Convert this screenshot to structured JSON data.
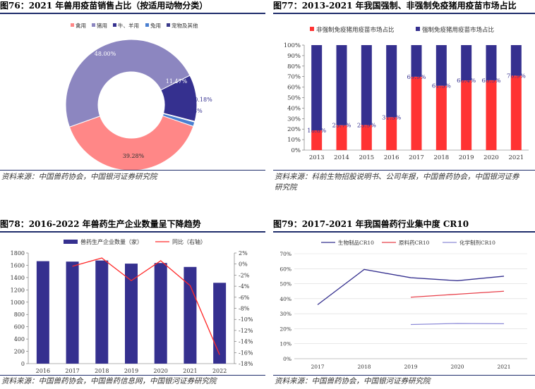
{
  "panels": {
    "p76": {
      "title": "图76：2021 年兽用疫苗销售占比（按适用动物分类）",
      "source": "资料来源：中国兽药协会，中国银河证券研究院"
    },
    "p77": {
      "title": "图77：2013-2021 年我国强制、非强制免疫猪用疫苗市场占比",
      "source_line1": "资料来源：科前生物招股说明书、公司年报，中国兽药协会，中国银河证券",
      "source_line2": "研究院"
    },
    "p78": {
      "title": "图78：2016-2022 年兽药生产企业数量呈下降趋势",
      "source": "资料来源：中国兽药协会，中国兽药信息网，中国银河证券研究院"
    },
    "p79": {
      "title": "图79：2017-2021 年我国兽药行业集中度 CR10",
      "source": "资料来源：中国兽药协会，中国银河证券研究院"
    }
  },
  "colors": {
    "navy": "#35308f",
    "lavender": "#8c86c0",
    "pink": "#ff8787",
    "blue": "#4a7fd0",
    "red": "#ff3333",
    "red_line": "#ff2a2a",
    "cr_red": "#e8404a",
    "cr_lavender": "#8e8cd8",
    "grid": "#d9d9d9",
    "rule": "#1f2d6b"
  },
  "chart_data": [
    {
      "id": "fig76",
      "type": "pie",
      "donut": true,
      "title": "2021 年兽用疫苗销售占比（按适用动物分类）",
      "legend_position": "top",
      "slices": [
        {
          "name": "禽用",
          "value": 39.28,
          "label": "39.28%",
          "color": "#ff8787"
        },
        {
          "name": "猪用",
          "value": 48.0,
          "label": "48.00%",
          "color": "#8c86c0"
        },
        {
          "name": "牛、羊用",
          "value": 11.47,
          "label": "11.47%",
          "color": "#35308f"
        },
        {
          "name": "宠物及其他",
          "value": 0.18,
          "label": "0.18%",
          "color": "#3a3a8a"
        },
        {
          "name": "兔用",
          "value": 1.08,
          "label": "1.08%",
          "color": "#4a7fd0"
        }
      ],
      "legend_order": [
        "禽用",
        "猪用",
        "牛、羊用",
        "兔用",
        "宠物及其他"
      ]
    },
    {
      "id": "fig77",
      "type": "bar",
      "stacked": true,
      "title": "2013-2021 年我国强制、非强制免疫猪用疫苗市场占比",
      "categories": [
        "2013",
        "2014",
        "2015",
        "2016",
        "2017",
        "2018",
        "2019",
        "2020",
        "2021"
      ],
      "series": [
        {
          "name": "非强制免疫猪用疫苗市场占比",
          "values": [
            18.8,
            23.7,
            23.9,
            31.3,
            69.9,
            61.3,
            66.4,
            66.5,
            70.9
          ],
          "labels": [
            "18.8%",
            "23.7%",
            "23.9%",
            "31.3%",
            "69.9%",
            "61.3%",
            "66.4%",
            "66.5%",
            "70.9%"
          ],
          "color": "#ff3333"
        },
        {
          "name": "强制免疫猪用疫苗市场占比",
          "values": [
            81.2,
            76.3,
            76.1,
            68.7,
            30.1,
            38.7,
            33.6,
            33.5,
            29.1
          ],
          "color": "#35308f"
        }
      ],
      "ylim": [
        0,
        100
      ],
      "yticks": [
        "0%",
        "10%",
        "20%",
        "30%",
        "40%",
        "50%",
        "60%",
        "70%",
        "80%",
        "90%",
        "100%"
      ],
      "legend_position": "top"
    },
    {
      "id": "fig78",
      "type": "bar",
      "title": "2016-2022 年兽药生产企业数量呈下降趋势",
      "categories": [
        "2016",
        "2017",
        "2018",
        "2019",
        "2020",
        "2021",
        "2022"
      ],
      "series": [
        {
          "name": "兽药生产企业数量（家）",
          "type": "bar",
          "axis": "left",
          "values": [
            1667,
            1660,
            1678,
            1627,
            1637,
            1573,
            1315
          ],
          "color": "#35308f"
        },
        {
          "name": "同比（右轴）",
          "type": "line",
          "axis": "right",
          "values": [
            null,
            -0.4,
            1.1,
            -3.0,
            0.6,
            -3.9,
            -16.4
          ],
          "color": "#ff2a2a"
        }
      ],
      "ylim_left": [
        0,
        1800
      ],
      "yticks_left": [
        "0",
        "200",
        "400",
        "600",
        "800",
        "1000",
        "1200",
        "1400",
        "1600",
        "1800"
      ],
      "ylim_right": [
        -18,
        2
      ],
      "yticks_right": [
        "2%",
        "0%",
        "-2%",
        "-4%",
        "-6%",
        "-8%",
        "-10%",
        "-12%",
        "-14%",
        "-16%",
        "-18%"
      ],
      "legend_position": "top"
    },
    {
      "id": "fig79",
      "type": "line",
      "title": "2017-2021 年我国兽药行业集中度 CR10",
      "categories": [
        "2017",
        "2018",
        "2019",
        "2020",
        "2021"
      ],
      "series": [
        {
          "name": "生物制品CR10",
          "values": [
            36,
            59.5,
            54,
            52,
            55
          ],
          "color": "#35308f"
        },
        {
          "name": "原料药CR10",
          "values": [
            null,
            null,
            41,
            43,
            45
          ],
          "color": "#e8404a"
        },
        {
          "name": "化学制剂CR10",
          "values": [
            null,
            null,
            22.8,
            23.5,
            23.3
          ],
          "color": "#8e8cd8"
        }
      ],
      "ylim": [
        0,
        70
      ],
      "yticks": [
        "0%",
        "10%",
        "20%",
        "30%",
        "40%",
        "50%",
        "60%",
        "70%"
      ],
      "legend_position": "top"
    }
  ]
}
